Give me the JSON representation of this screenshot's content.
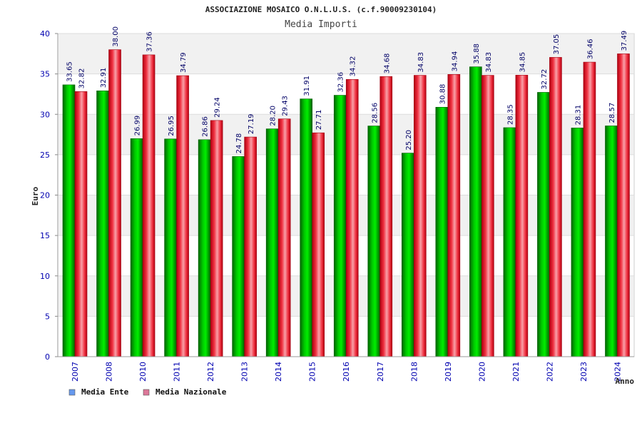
{
  "header": {
    "title": "ASSOCIAZIONE MOSAICO O.N.L.U.S. (c.f.90009230104)",
    "subtitle": "Media Importi"
  },
  "chart_data": {
    "type": "bar",
    "xlabel": "Anno",
    "ylabel": "Euro",
    "ylim": [
      0,
      40
    ],
    "yticks": [
      0,
      5,
      10,
      15,
      20,
      25,
      30,
      35,
      40
    ],
    "grid": true,
    "legend_position": "bottom-left",
    "categories": [
      "2007",
      "2008",
      "2010",
      "2011",
      "2012",
      "2013",
      "2014",
      "2015",
      "2016",
      "2017",
      "2018",
      "2019",
      "2020",
      "2021",
      "2022",
      "2023",
      "2024"
    ],
    "series": [
      {
        "name": "Media Ente",
        "color": "#00a000",
        "legend_color": "#6699ee",
        "values": [
          33.65,
          32.91,
          26.99,
          26.95,
          26.86,
          24.78,
          28.2,
          31.91,
          32.36,
          28.56,
          25.2,
          30.88,
          35.88,
          28.35,
          32.72,
          28.31,
          28.57
        ],
        "labels": [
          "33.65",
          "32.91",
          "26.99",
          "26.95",
          "26.86",
          "24.78",
          "28.20",
          "31.91",
          "32.36",
          "28.56",
          "25.20",
          "30.88",
          "35.88",
          "28.35",
          "32.72",
          "28.31",
          "28.57"
        ]
      },
      {
        "name": "Media Nazionale",
        "color": "#e0202a",
        "legend_color": "#dd7799",
        "values": [
          32.82,
          38.0,
          37.36,
          34.79,
          29.24,
          27.19,
          29.43,
          27.71,
          34.32,
          34.68,
          34.83,
          34.94,
          34.83,
          34.85,
          37.05,
          36.46,
          37.49
        ],
        "labels": [
          "32.82",
          "38.00",
          "37.36",
          "34.79",
          "29.24",
          "27.19",
          "29.43",
          "27.71",
          "34.32",
          "34.68",
          "34.83",
          "34.94",
          "34.83",
          "34.85",
          "37.05",
          "36.46",
          "37.49"
        ]
      }
    ]
  }
}
